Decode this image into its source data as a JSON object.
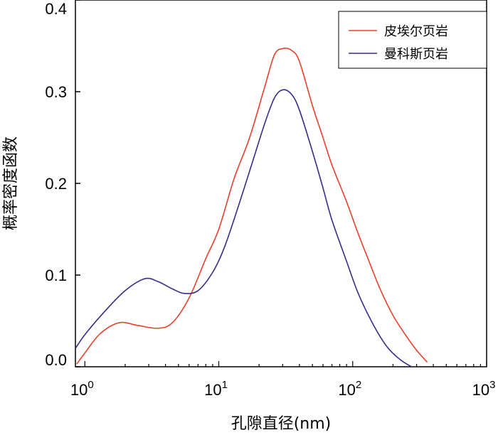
{
  "chart_data": {
    "type": "line",
    "xscale": "log",
    "xlabel": "孔隙直径(nm)",
    "ylabel": "概率密度函数",
    "xlim": [
      0.85,
      1000
    ],
    "ylim": [
      0,
      0.4
    ],
    "x_ticks": [
      {
        "value": 1,
        "base": "10",
        "exp": "0"
      },
      {
        "value": 10,
        "base": "10",
        "exp": "1"
      },
      {
        "value": 100,
        "base": "10",
        "exp": "2"
      },
      {
        "value": 1000,
        "base": "10",
        "exp": "3"
      }
    ],
    "y_ticks": [
      {
        "value": 0.0,
        "label": "0.0"
      },
      {
        "value": 0.1,
        "label": "0.1"
      },
      {
        "value": 0.2,
        "label": "0.2"
      },
      {
        "value": 0.3,
        "label": "0.3"
      },
      {
        "value": 0.4,
        "label": "0.4"
      }
    ],
    "legend_position": "top-right",
    "series": [
      {
        "name": "皮埃尔页岩",
        "color": "#e8402a",
        "points": [
          [
            0.87,
            0.003
          ],
          [
            1.0,
            0.015
          ],
          [
            1.3,
            0.036
          ],
          [
            1.8,
            0.048
          ],
          [
            2.5,
            0.045
          ],
          [
            3.5,
            0.042
          ],
          [
            4.5,
            0.048
          ],
          [
            6,
            0.075
          ],
          [
            8,
            0.118
          ],
          [
            10,
            0.15
          ],
          [
            13,
            0.205
          ],
          [
            17,
            0.25
          ],
          [
            22,
            0.305
          ],
          [
            26,
            0.34
          ],
          [
            30,
            0.347
          ],
          [
            35,
            0.345
          ],
          [
            40,
            0.333
          ],
          [
            50,
            0.285
          ],
          [
            60,
            0.25
          ],
          [
            70,
            0.22
          ],
          [
            90,
            0.18
          ],
          [
            110,
            0.145
          ],
          [
            130,
            0.118
          ],
          [
            160,
            0.085
          ],
          [
            200,
            0.056
          ],
          [
            250,
            0.034
          ],
          [
            300,
            0.018
          ],
          [
            360,
            0.005
          ]
        ]
      },
      {
        "name": "曼科斯页岩",
        "color": "#3b2a88",
        "points": [
          [
            0.85,
            0.02
          ],
          [
            1.0,
            0.035
          ],
          [
            1.4,
            0.06
          ],
          [
            2.0,
            0.083
          ],
          [
            2.8,
            0.096
          ],
          [
            3.5,
            0.093
          ],
          [
            4.5,
            0.085
          ],
          [
            5.5,
            0.08
          ],
          [
            7,
            0.083
          ],
          [
            9,
            0.103
          ],
          [
            11,
            0.13
          ],
          [
            14,
            0.175
          ],
          [
            18,
            0.225
          ],
          [
            22,
            0.265
          ],
          [
            26,
            0.293
          ],
          [
            30,
            0.302
          ],
          [
            35,
            0.297
          ],
          [
            40,
            0.28
          ],
          [
            50,
            0.235
          ],
          [
            60,
            0.195
          ],
          [
            70,
            0.16
          ],
          [
            90,
            0.115
          ],
          [
            110,
            0.08
          ],
          [
            140,
            0.048
          ],
          [
            180,
            0.022
          ],
          [
            230,
            0.007
          ],
          [
            300,
            -0.003
          ]
        ]
      }
    ]
  }
}
